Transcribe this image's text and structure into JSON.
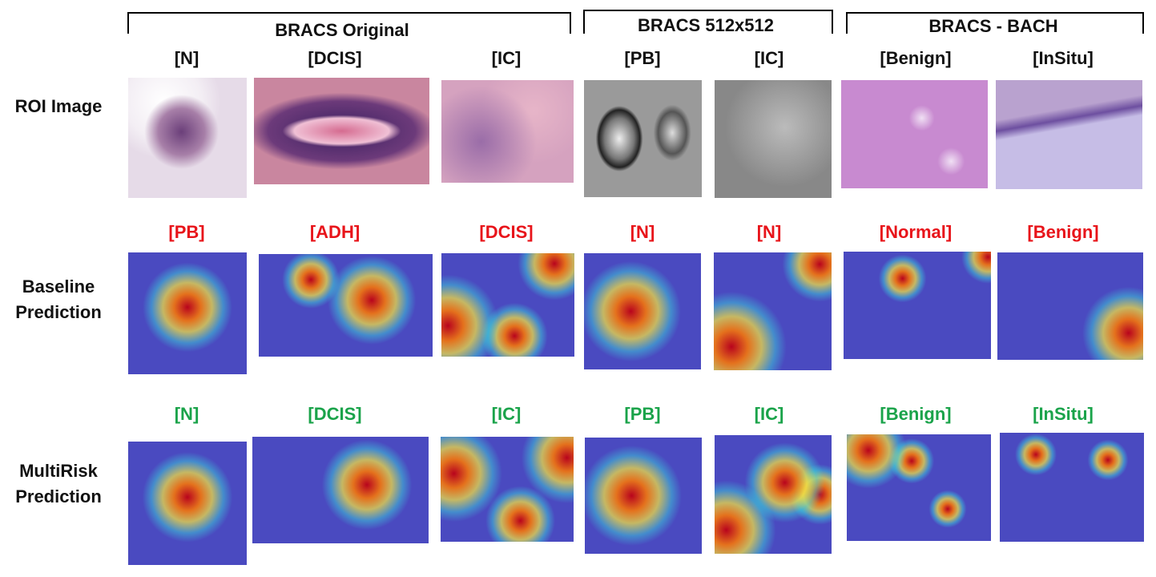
{
  "groups": [
    {
      "title": "BRACS Original"
    },
    {
      "title": "BRACS 512x512"
    },
    {
      "title": "BRACS - BACH"
    }
  ],
  "columns": [
    "[N]",
    "[DCIS]",
    "[IC]",
    "[PB]",
    "[IC]",
    "[Benign]",
    "[InSitu]"
  ],
  "rows": [
    {
      "label": [
        "ROI Image"
      ]
    },
    {
      "label": [
        "Baseline",
        "Prediction"
      ]
    },
    {
      "label": [
        "MultiRisk",
        "Prediction"
      ]
    }
  ],
  "baseline_predictions": [
    "[PB]",
    "[ADH]",
    "[DCIS]",
    "[N]",
    "[N]",
    "[Normal]",
    "[Benign]"
  ],
  "multirisk_predictions": [
    "[N]",
    "[DCIS]",
    "[IC]",
    "[PB]",
    "[IC]",
    "[Benign]",
    "[InSitu]"
  ]
}
